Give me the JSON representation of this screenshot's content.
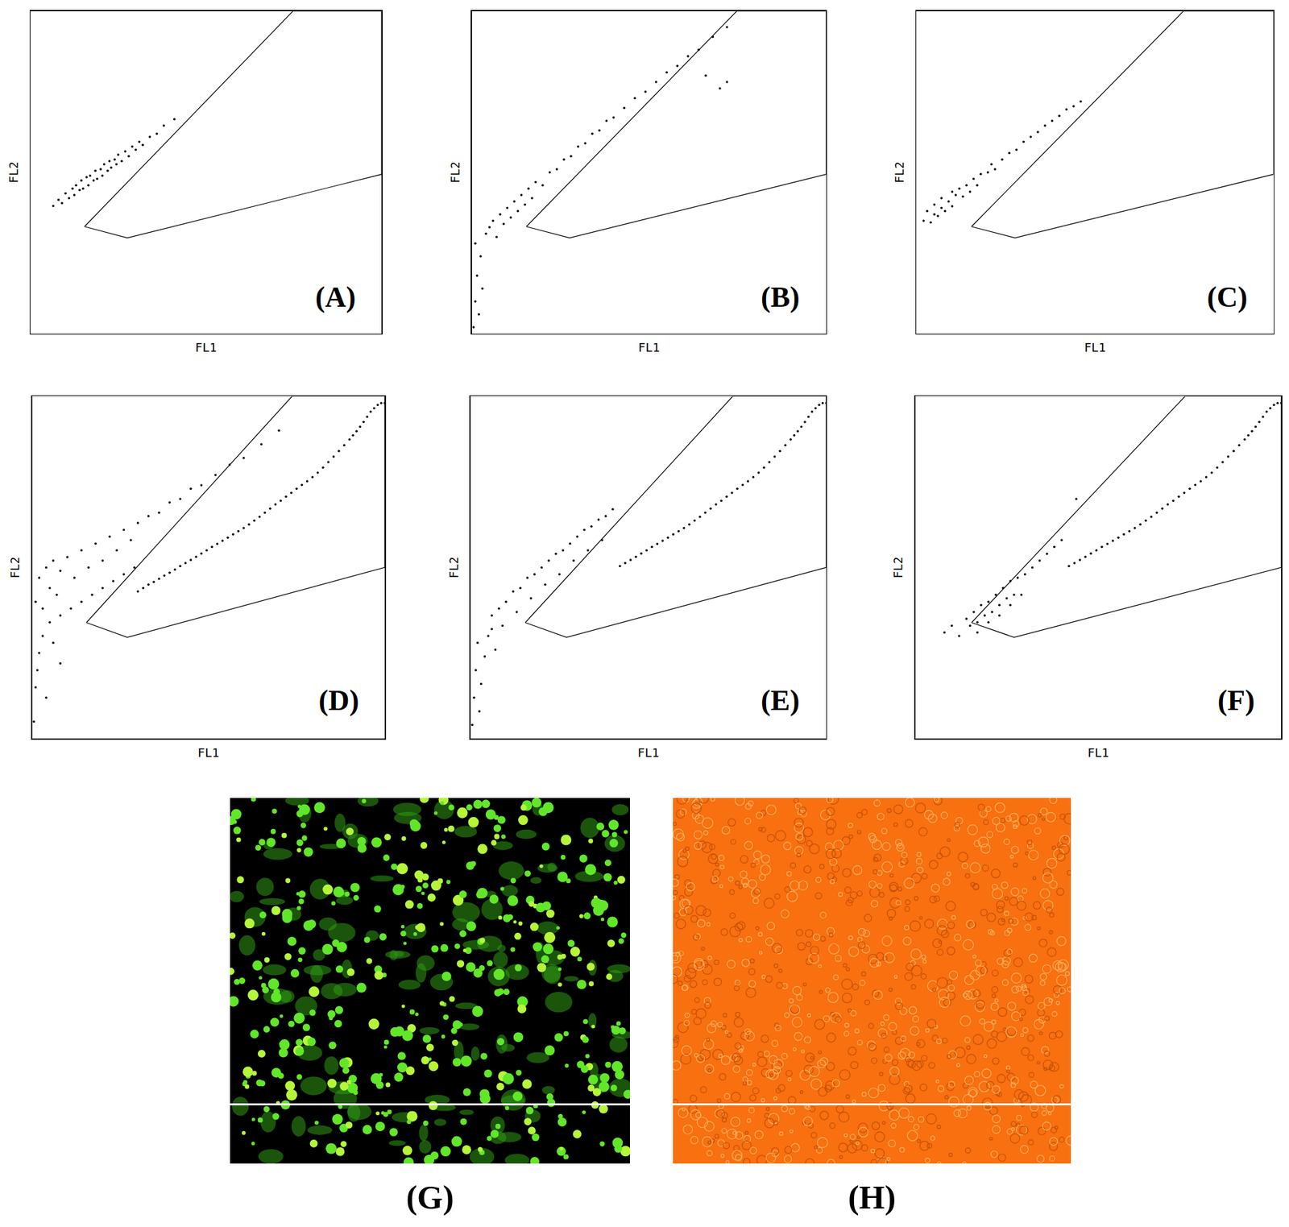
{
  "chart_data": [
    {
      "type": "scatter",
      "label": "(A)",
      "x_label": "FL1",
      "y_label": "FL2",
      "xlim": [
        0,
        100
      ],
      "ylim": [
        0,
        100
      ],
      "xticks": [],
      "yticks": [],
      "tick_labels": false,
      "grid": false,
      "marker": "dot",
      "color": "#000000",
      "x": [
        6.5,
        8,
        9,
        10,
        11,
        12,
        12.5,
        13,
        14,
        14.5,
        15,
        16,
        16.5,
        17,
        18,
        18.5,
        19,
        20,
        20.5,
        21,
        22,
        22.5,
        23,
        24,
        24.5,
        25,
        26,
        27,
        28,
        29,
        30,
        31,
        32,
        34,
        36,
        38,
        41
      ],
      "y": [
        39.6,
        41.5,
        40.5,
        43.5,
        42,
        45,
        43,
        46,
        44.5,
        47.5,
        45,
        48.5,
        46,
        49,
        47.5,
        50.5,
        48,
        51,
        49,
        52.5,
        50.5,
        53.5,
        51.5,
        54,
        52.5,
        55.5,
        53.5,
        56.5,
        55,
        58,
        57,
        59.5,
        58.5,
        61,
        62,
        64.5,
        66.5
      ],
      "gate": {
        "x": [
          15.4,
          27.6,
          100,
          100,
          74.8,
          15.4
        ],
        "y": [
          33.2,
          29.7,
          49.4,
          100,
          100,
          33.2
        ]
      }
    },
    {
      "type": "scatter",
      "label": "(B)",
      "x_label": "FL1",
      "y_label": "FL2",
      "xlim": [
        0,
        100
      ],
      "ylim": [
        0,
        100
      ],
      "xticks": [],
      "yticks": [],
      "tick_labels": false,
      "grid": false,
      "marker": "dot",
      "color": "#000000",
      "x": [
        0.5,
        1,
        1.5,
        2,
        2.5,
        3,
        1,
        4,
        5,
        6,
        7,
        8,
        9,
        10,
        11,
        12,
        13,
        14,
        15,
        16,
        17,
        18,
        20,
        22,
        24,
        26,
        28,
        30,
        32,
        34,
        36,
        38,
        40,
        43,
        46,
        49,
        52,
        55,
        58,
        61,
        64,
        68,
        72,
        66,
        70,
        72
      ],
      "y": [
        2,
        10,
        18,
        6,
        24,
        14,
        28,
        31,
        33,
        35,
        30,
        37,
        34,
        39,
        36,
        41,
        38,
        43,
        40,
        45,
        42,
        47,
        46,
        50,
        51,
        54,
        55,
        58,
        59,
        62,
        63,
        66,
        67,
        70,
        73,
        75,
        78,
        81,
        83,
        86,
        88,
        92,
        95,
        80,
        76,
        78
      ],
      "gate": {
        "x": [
          15.4,
          27.6,
          100,
          100,
          74.8,
          15.4
        ],
        "y": [
          33.2,
          29.7,
          49.4,
          100,
          100,
          33.2
        ]
      }
    },
    {
      "type": "scatter",
      "label": "(C)",
      "x_label": "FL1",
      "y_label": "FL2",
      "xlim": [
        0,
        100
      ],
      "ylim": [
        0,
        100
      ],
      "xticks": [],
      "yticks": [],
      "tick_labels": false,
      "grid": false,
      "marker": "dot",
      "color": "#000000",
      "x": [
        2,
        3,
        4,
        5,
        5,
        6,
        7,
        7,
        8,
        9,
        10,
        10,
        11,
        12,
        13,
        14,
        15,
        16,
        17,
        18,
        20,
        21,
        22,
        24,
        26,
        28,
        30,
        32,
        34,
        36,
        38,
        40,
        42,
        44,
        46
      ],
      "y": [
        35,
        38,
        34.5,
        37,
        40,
        36.5,
        39,
        42,
        38,
        41,
        44,
        39.5,
        43,
        45,
        42.5,
        46,
        44,
        48,
        46,
        49.5,
        50,
        52.5,
        51,
        54,
        56,
        57,
        59.5,
        61,
        62.5,
        64.5,
        66,
        67.5,
        69.5,
        70.5,
        72
      ],
      "gate": {
        "x": [
          15.4,
          27.6,
          100,
          100,
          74.8,
          15.4
        ],
        "y": [
          33.2,
          29.7,
          49.4,
          100,
          100,
          33.2
        ]
      }
    },
    {
      "type": "scatter",
      "label": "(D)",
      "x_label": "FL1",
      "y_label": "FL2",
      "xlim": [
        0,
        100
      ],
      "ylim": [
        0,
        100
      ],
      "xticks": [],
      "yticks": [],
      "tick_labels": false,
      "grid": false,
      "marker": "dot",
      "color": "#000000",
      "x": [
        1,
        2,
        3,
        4,
        5,
        6,
        7,
        8,
        10,
        12,
        14,
        16,
        18,
        20,
        22,
        24,
        26,
        28,
        30,
        33,
        36,
        39,
        42,
        45,
        48,
        52,
        56,
        60,
        65,
        70,
        5,
        8,
        11,
        14,
        17,
        20,
        23,
        26,
        29,
        0.5,
        1,
        2,
        3,
        1.5,
        4,
        6,
        8,
        30,
        33,
        36,
        39,
        42,
        45,
        48,
        51,
        54,
        57,
        60,
        63,
        66,
        69,
        72,
        75,
        78,
        81,
        84,
        87,
        90,
        92,
        94,
        96,
        98,
        99,
        100,
        31.5,
        34.5,
        37.5,
        40.5,
        43.5,
        46.5,
        49.5,
        52.5,
        55.5,
        58.5,
        61.5,
        64.5,
        67.5,
        70.5,
        73.5,
        76.5,
        79.5,
        82.5,
        85.5,
        88.5,
        91,
        93,
        95,
        97
      ],
      "y": [
        40,
        47,
        38,
        50,
        44,
        52,
        42,
        49,
        53,
        47,
        55,
        50,
        57,
        52,
        59,
        55,
        61,
        58,
        63,
        65,
        66,
        69,
        70,
        73,
        74,
        77,
        80,
        82,
        86,
        90,
        34,
        36,
        38,
        40,
        42,
        44,
        46,
        48,
        50,
        5,
        15,
        25,
        30,
        20,
        12,
        28,
        22,
        43,
        45,
        46.7,
        48.5,
        50.4,
        52.2,
        54.1,
        56,
        57.8,
        59.7,
        61.5,
        63.7,
        66,
        68.4,
        70.7,
        73,
        75.2,
        77.7,
        80.8,
        84,
        87.4,
        89.8,
        92.5,
        95.5,
        97.5,
        98,
        98,
        44,
        45.8,
        47.6,
        49.4,
        51.3,
        53.1,
        55,
        56.9,
        58.7,
        60.6,
        62.6,
        64.8,
        67.2,
        69.5,
        71.8,
        74.1,
        76.4,
        79.2,
        82.4,
        85.7,
        88.6,
        91.1,
        94,
        96.5
      ],
      "gate": {
        "x": [
          15.4,
          27.0,
          100,
          100,
          73.7,
          15.4
        ],
        "y": [
          33.9,
          29.6,
          50,
          100,
          100,
          33.9
        ]
      }
    },
    {
      "type": "scatter",
      "label": "(E)",
      "x_label": "FL1",
      "y_label": "FL2",
      "xlim": [
        0,
        100
      ],
      "ylim": [
        0,
        100
      ],
      "xticks": [],
      "yticks": [],
      "tick_labels": false,
      "grid": false,
      "marker": "dot",
      "color": "#000000",
      "x": [
        0.5,
        1,
        1.5,
        2,
        3,
        4,
        5,
        2.5,
        6,
        7,
        6,
        8,
        10,
        12,
        14,
        16,
        18,
        20,
        22,
        24,
        26,
        28,
        30,
        32,
        34,
        36,
        38,
        40,
        9,
        13,
        17,
        21,
        25,
        29,
        33,
        37,
        42,
        45,
        48,
        51,
        54,
        57,
        60,
        63,
        66,
        69,
        72,
        75,
        78,
        81,
        84,
        87,
        90,
        92,
        94,
        96,
        98,
        99,
        100,
        43.5,
        46.5,
        49.5,
        52.5,
        55.5,
        58.5,
        61.5,
        64.5,
        67.5,
        70.5,
        73.5,
        76.5,
        79.5,
        82.5,
        85.5,
        88.5,
        91,
        93,
        95,
        97
      ],
      "y": [
        4,
        12,
        20,
        28,
        16,
        24,
        30,
        8,
        32,
        26,
        36,
        38,
        40,
        43,
        44,
        47,
        48,
        50,
        52,
        54,
        55,
        57,
        59,
        61,
        62,
        64,
        65,
        67,
        33,
        37,
        41,
        45,
        48,
        52,
        55,
        58,
        50.4,
        52.2,
        54.1,
        56,
        57.8,
        59.7,
        61.5,
        63.7,
        66,
        68.4,
        70.7,
        73,
        75.2,
        77.7,
        80.8,
        84,
        87.4,
        89.8,
        92.5,
        95.5,
        97.5,
        98,
        98,
        51.3,
        53.1,
        55,
        56.9,
        58.7,
        60.6,
        62.6,
        64.8,
        67.2,
        69.5,
        71.8,
        74.1,
        76.4,
        79.2,
        82.4,
        85.7,
        88.6,
        91.1,
        94,
        96.5
      ],
      "gate": {
        "x": [
          15.4,
          27.0,
          100,
          100,
          73.7,
          15.4
        ],
        "y": [
          33.9,
          29.6,
          50,
          100,
          100,
          33.9
        ]
      }
    },
    {
      "type": "scatter",
      "label": "(F)",
      "x_label": "FL1",
      "y_label": "FL2",
      "xlim": [
        0,
        100
      ],
      "ylim": [
        0,
        100
      ],
      "xticks": [],
      "yticks": [],
      "tick_labels": false,
      "grid": false,
      "marker": "dot",
      "color": "#000000",
      "x": [
        8,
        10,
        12,
        14,
        15,
        16,
        17,
        18,
        19,
        20,
        21,
        22,
        23,
        24,
        25,
        26,
        27,
        28,
        30,
        32,
        34,
        36,
        38,
        40,
        17,
        20,
        23,
        26,
        29,
        44,
        42,
        45,
        48,
        51,
        54,
        57,
        60,
        63,
        66,
        69,
        72,
        75,
        78,
        81,
        84,
        87,
        90,
        92,
        94,
        96,
        98,
        99,
        100,
        43.5,
        46.5,
        49.5,
        52.5,
        55.5,
        58.5,
        61.5,
        64.5,
        67.5,
        70.5,
        73.5,
        76.5,
        79.5,
        82.5,
        85.5,
        88.5,
        91,
        93,
        95,
        97
      ],
      "y": [
        31,
        33,
        30,
        35,
        33,
        37,
        34,
        39,
        36,
        40,
        37,
        42,
        39,
        44,
        41,
        46,
        42,
        47,
        48,
        50,
        52,
        54,
        56,
        58,
        31,
        34,
        36,
        39,
        42,
        70,
        50.4,
        52.2,
        54.1,
        56,
        57.8,
        59.7,
        61.5,
        63.7,
        66,
        68.4,
        70.7,
        73,
        75.2,
        77.7,
        80.8,
        84,
        87.4,
        89.8,
        92.5,
        95.5,
        97.5,
        98,
        98,
        51.3,
        53.1,
        55,
        56.9,
        58.7,
        60.6,
        62.6,
        64.8,
        67.2,
        69.5,
        71.8,
        74.1,
        76.4,
        79.2,
        82.4,
        85.7,
        88.6,
        91.1,
        94,
        96.5
      ],
      "gate": {
        "x": [
          15.4,
          27.0,
          100,
          100,
          73.7,
          15.4
        ],
        "y": [
          33.9,
          29.6,
          50,
          100,
          100,
          33.9
        ]
      }
    }
  ],
  "images": [
    {
      "label": "(G)"
    },
    {
      "label": "(H)"
    }
  ]
}
